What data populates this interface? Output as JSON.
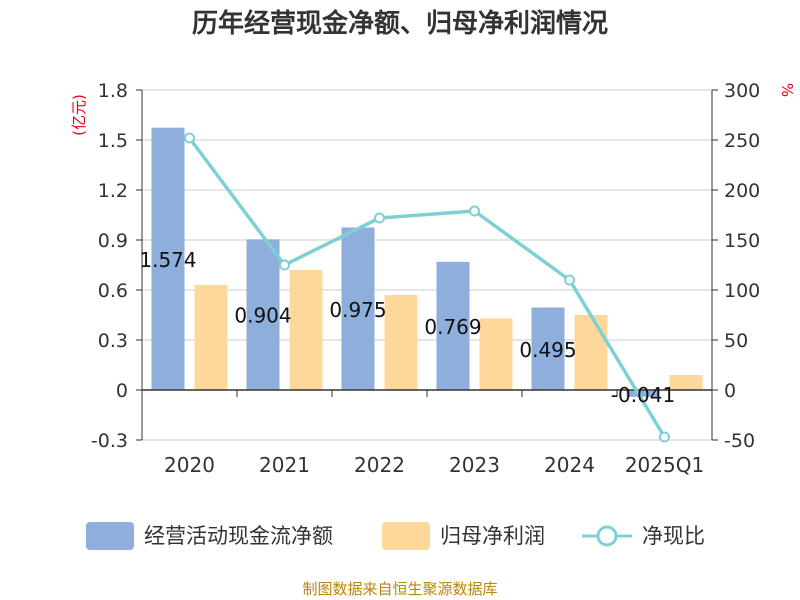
{
  "chart_data": {
    "type": "bar",
    "title": "历年经营现金净额、归母净利润情况",
    "categories": [
      "2020",
      "2021",
      "2022",
      "2023",
      "2024",
      "2025Q1"
    ],
    "series": [
      {
        "name": "经营活动现金流净额",
        "type": "bar",
        "axis": "left",
        "color": "#8eaedc",
        "values": [
          1.574,
          0.904,
          0.975,
          0.769,
          0.495,
          -0.041
        ],
        "labels": [
          "1.574",
          "0.904",
          "0.975",
          "0.769",
          "0.495",
          "-0.041"
        ]
      },
      {
        "name": "归母净利润",
        "type": "bar",
        "axis": "left",
        "color": "#fdd89a",
        "values": [
          0.63,
          0.72,
          0.57,
          0.43,
          0.45,
          0.09
        ]
      },
      {
        "name": "净现比",
        "type": "line",
        "axis": "right",
        "color": "#7fd0d4",
        "values": [
          252,
          125,
          172,
          179,
          110,
          -47
        ]
      }
    ],
    "left_axis": {
      "unit": "(亿元)",
      "ylim": [
        -0.3,
        1.8
      ],
      "ticks": [
        1.8,
        1.5,
        1.2,
        0.9,
        0.6,
        0.3,
        0,
        -0.3
      ],
      "tick_labels": [
        "1.8",
        "1.5",
        "1.2",
        "0.9",
        "0.6",
        "0.3",
        "0",
        "-0.3"
      ]
    },
    "right_axis": {
      "unit": "%",
      "ylim": [
        -50,
        300
      ],
      "ticks": [
        300,
        250,
        200,
        150,
        100,
        50,
        0,
        -50
      ],
      "tick_labels": [
        "300",
        "250",
        "200",
        "150",
        "100",
        "50",
        "0",
        "-50"
      ]
    },
    "grid": true,
    "legend_position": "bottom"
  },
  "source_text": "制图数据来自恒生聚源数据库"
}
